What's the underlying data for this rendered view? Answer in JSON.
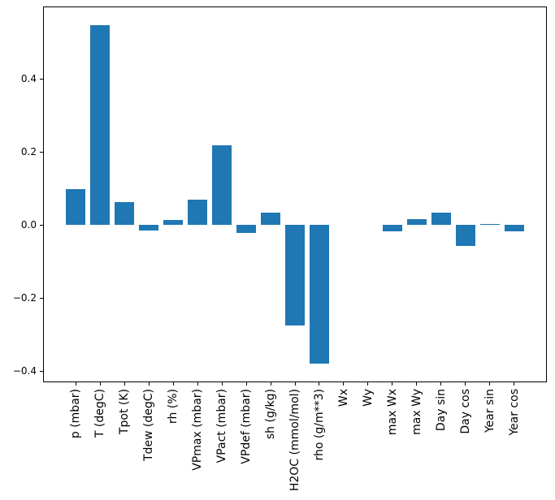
{
  "chart_data": {
    "type": "bar",
    "title": "",
    "xlabel": "",
    "ylabel": "",
    "categories": [
      "p (mbar)",
      "T (degC)",
      "Tpot (K)",
      "Tdew (degC)",
      "rh (%)",
      "VPmax (mbar)",
      "VPact (mbar)",
      "VPdef (mbar)",
      "sh (g/kg)",
      "H2OC (mmol/mol)",
      "rho (g/m**3)",
      "Wx",
      "Wy",
      "max Wx",
      "max Wy",
      "Day sin",
      "Day cos",
      "Year sin",
      "Year cos"
    ],
    "values": [
      0.098,
      0.547,
      0.062,
      -0.016,
      0.013,
      0.068,
      0.217,
      -0.022,
      0.033,
      -0.275,
      -0.38,
      0.0,
      0.0,
      -0.018,
      0.015,
      0.034,
      -0.057,
      0.003,
      -0.017
    ],
    "bar_color": "#1f77b4",
    "bar_width": 0.8,
    "ylim": [
      -0.431,
      0.598
    ],
    "xlim": [
      -1.34,
      19.34
    ],
    "yticks": [
      {
        "value": 0.4,
        "label": "0.4"
      },
      {
        "value": 0.2,
        "label": "0.2"
      },
      {
        "value": 0.0,
        "label": "0.0"
      },
      {
        "value": -0.2,
        "label": "−0.2"
      },
      {
        "value": -0.4,
        "label": "−0.4"
      }
    ],
    "grid": false,
    "legend": null,
    "x_tick_rotation_deg": 90
  }
}
